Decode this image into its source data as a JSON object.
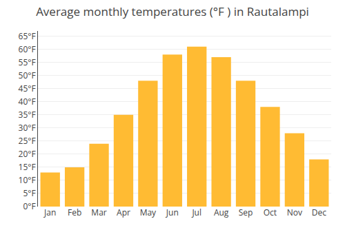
{
  "chart_data": {
    "type": "bar",
    "title": "Average monthly temperatures (°F ) in Rautalampi",
    "categories": [
      "Jan",
      "Feb",
      "Mar",
      "Apr",
      "May",
      "Jun",
      "Jul",
      "Aug",
      "Sep",
      "Oct",
      "Nov",
      "Dec"
    ],
    "values": [
      13,
      15,
      24,
      35,
      48,
      58,
      61,
      57,
      48,
      38,
      28,
      18
    ],
    "color": "#FFBB33",
    "ylim": [
      0,
      67
    ],
    "yticks": [
      {
        "value": 0,
        "label": "0°F"
      },
      {
        "value": 5,
        "label": "5°F"
      },
      {
        "value": 10,
        "label": "10°F"
      },
      {
        "value": 15,
        "label": "15°F"
      },
      {
        "value": 20,
        "label": "20°F"
      },
      {
        "value": 25,
        "label": "25°F"
      },
      {
        "value": 30,
        "label": "30°F"
      },
      {
        "value": 35,
        "label": "35°F"
      },
      {
        "value": 40,
        "label": "40°F"
      },
      {
        "value": 45,
        "label": "45°F"
      },
      {
        "value": 50,
        "label": "50°F"
      },
      {
        "value": 55,
        "label": "55°F"
      },
      {
        "value": 60,
        "label": "60°F"
      },
      {
        "value": 65,
        "label": "65°F"
      }
    ],
    "grid": true
  }
}
